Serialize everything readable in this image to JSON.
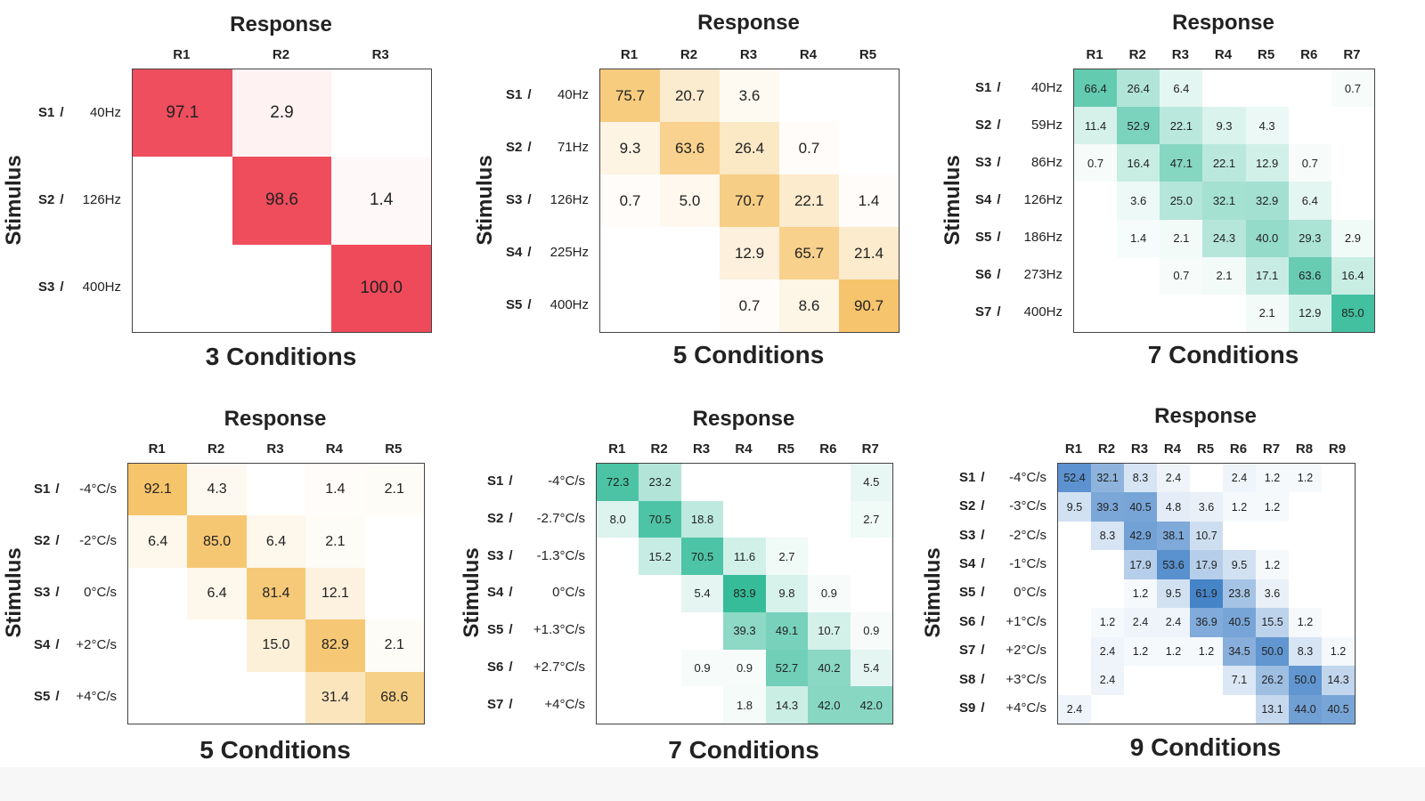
{
  "chart_data": [
    {
      "type": "heatmap",
      "title": "3 Conditions",
      "xlabel": "Response",
      "ylabel": "Stimulus",
      "color": "#ef4a5a",
      "vmax": 100,
      "columns": [
        "R1",
        "R2",
        "R3"
      ],
      "rows": [
        {
          "id": "S1",
          "value": "40Hz"
        },
        {
          "id": "S2",
          "value": "126Hz"
        },
        {
          "id": "S3",
          "value": "400Hz"
        }
      ],
      "values": [
        [
          97.1,
          2.9,
          null
        ],
        [
          null,
          98.6,
          1.4
        ],
        [
          null,
          null,
          100.0
        ]
      ]
    },
    {
      "type": "heatmap",
      "title": "5 Conditions",
      "xlabel": "Response",
      "ylabel": "Stimulus",
      "color": "#f5c061",
      "vmax": 100,
      "columns": [
        "R1",
        "R2",
        "R3",
        "R4",
        "R5"
      ],
      "rows": [
        {
          "id": "S1",
          "value": "40Hz"
        },
        {
          "id": "S2",
          "value": "71Hz"
        },
        {
          "id": "S3",
          "value": "126Hz"
        },
        {
          "id": "S4",
          "value": "225Hz"
        },
        {
          "id": "S5",
          "value": "400Hz"
        }
      ],
      "values": [
        [
          75.7,
          20.7,
          3.6,
          null,
          null
        ],
        [
          9.3,
          63.6,
          26.4,
          0.7,
          null
        ],
        [
          0.7,
          5.0,
          70.7,
          22.1,
          1.4
        ],
        [
          null,
          null,
          12.9,
          65.7,
          21.4
        ],
        [
          null,
          null,
          0.7,
          8.6,
          90.7
        ]
      ]
    },
    {
      "type": "heatmap",
      "title": "7 Conditions",
      "xlabel": "Response",
      "ylabel": "Stimulus",
      "color": "#2bb894",
      "vmax": 100,
      "columns": [
        "R1",
        "R2",
        "R3",
        "R4",
        "R5",
        "R6",
        "R7"
      ],
      "rows": [
        {
          "id": "S1",
          "value": "40Hz"
        },
        {
          "id": "S2",
          "value": "59Hz"
        },
        {
          "id": "S3",
          "value": "86Hz"
        },
        {
          "id": "S4",
          "value": "126Hz"
        },
        {
          "id": "S5",
          "value": "186Hz"
        },
        {
          "id": "S6",
          "value": "273Hz"
        },
        {
          "id": "S7",
          "value": "400Hz"
        }
      ],
      "values": [
        [
          66.4,
          26.4,
          6.4,
          null,
          null,
          null,
          0.7
        ],
        [
          11.4,
          52.9,
          22.1,
          9.3,
          4.3,
          null,
          null
        ],
        [
          0.7,
          16.4,
          47.1,
          22.1,
          12.9,
          0.7,
          null
        ],
        [
          null,
          3.6,
          25.0,
          32.1,
          32.9,
          6.4,
          null
        ],
        [
          null,
          1.4,
          2.1,
          24.3,
          40.0,
          29.3,
          2.9
        ],
        [
          null,
          null,
          0.7,
          2.1,
          17.1,
          63.6,
          16.4
        ],
        [
          null,
          null,
          null,
          null,
          2.1,
          12.9,
          85.0
        ]
      ]
    },
    {
      "type": "heatmap",
      "title": "5 Conditions",
      "xlabel": "Response",
      "ylabel": "Stimulus",
      "color": "#f5c061",
      "vmax": 100,
      "columns": [
        "R1",
        "R2",
        "R3",
        "R4",
        "R5"
      ],
      "rows": [
        {
          "id": "S1",
          "value": "-4°C/s"
        },
        {
          "id": "S2",
          "value": "-2°C/s"
        },
        {
          "id": "S3",
          "value": "0°C/s"
        },
        {
          "id": "S4",
          "value": "+2°C/s"
        },
        {
          "id": "S5",
          "value": "+4°C/s"
        }
      ],
      "values": [
        [
          92.1,
          4.3,
          null,
          1.4,
          2.1
        ],
        [
          6.4,
          85.0,
          6.4,
          2.1,
          null
        ],
        [
          null,
          6.4,
          81.4,
          12.1,
          null
        ],
        [
          null,
          null,
          15.0,
          82.9,
          2.1
        ],
        [
          null,
          null,
          null,
          31.4,
          68.6
        ]
      ]
    },
    {
      "type": "heatmap",
      "title": "7 Conditions",
      "xlabel": "Response",
      "ylabel": "Stimulus",
      "color": "#2bb894",
      "vmax": 90,
      "columns": [
        "R1",
        "R2",
        "R3",
        "R4",
        "R5",
        "R6",
        "R7"
      ],
      "rows": [
        {
          "id": "S1",
          "value": "-4°C/s"
        },
        {
          "id": "S2",
          "value": "-2.7°C/s"
        },
        {
          "id": "S3",
          "value": "-1.3°C/s"
        },
        {
          "id": "S4",
          "value": "0°C/s"
        },
        {
          "id": "S5",
          "value": "+1.3°C/s"
        },
        {
          "id": "S6",
          "value": "+2.7°C/s"
        },
        {
          "id": "S7",
          "value": "+4°C/s"
        }
      ],
      "values": [
        [
          72.3,
          23.2,
          null,
          null,
          null,
          null,
          4.5
        ],
        [
          8.0,
          70.5,
          18.8,
          null,
          null,
          null,
          2.7
        ],
        [
          null,
          15.2,
          70.5,
          11.6,
          2.7,
          null,
          null
        ],
        [
          null,
          null,
          5.4,
          83.9,
          9.8,
          0.9,
          null
        ],
        [
          null,
          null,
          null,
          39.3,
          49.1,
          10.7,
          0.9
        ],
        [
          null,
          null,
          0.9,
          0.9,
          52.7,
          40.2,
          5.4
        ],
        [
          null,
          null,
          null,
          1.8,
          14.3,
          42.0,
          42.0
        ]
      ]
    },
    {
      "type": "heatmap",
      "title": "9 Conditions",
      "xlabel": "Response",
      "ylabel": "Stimulus",
      "color": "#3f7fc6",
      "vmax": 65,
      "columns": [
        "R1",
        "R2",
        "R3",
        "R4",
        "R5",
        "R6",
        "R7",
        "R8",
        "R9"
      ],
      "rows": [
        {
          "id": "S1",
          "value": "-4°C/s"
        },
        {
          "id": "S2",
          "value": "-3°C/s"
        },
        {
          "id": "S3",
          "value": "-2°C/s"
        },
        {
          "id": "S4",
          "value": "-1°C/s"
        },
        {
          "id": "S5",
          "value": "0°C/s"
        },
        {
          "id": "S6",
          "value": "+1°C/s"
        },
        {
          "id": "S7",
          "value": "+2°C/s"
        },
        {
          "id": "S8",
          "value": "+3°C/s"
        },
        {
          "id": "S9",
          "value": "+4°C/s"
        }
      ],
      "values": [
        [
          52.4,
          32.1,
          8.3,
          2.4,
          null,
          2.4,
          1.2,
          1.2,
          null
        ],
        [
          9.5,
          39.3,
          40.5,
          4.8,
          3.6,
          1.2,
          1.2,
          null,
          null
        ],
        [
          null,
          8.3,
          42.9,
          38.1,
          10.7,
          null,
          null,
          null,
          null
        ],
        [
          null,
          null,
          17.9,
          53.6,
          17.9,
          9.5,
          1.2,
          null,
          null
        ],
        [
          null,
          null,
          1.2,
          9.5,
          61.9,
          23.8,
          3.6,
          null,
          null
        ],
        [
          null,
          1.2,
          2.4,
          2.4,
          36.9,
          40.5,
          15.5,
          1.2,
          null
        ],
        [
          null,
          2.4,
          1.2,
          1.2,
          1.2,
          34.5,
          50.0,
          8.3,
          1.2
        ],
        [
          null,
          2.4,
          null,
          null,
          null,
          7.1,
          26.2,
          50.0,
          14.3
        ],
        [
          2.4,
          null,
          null,
          null,
          null,
          null,
          13.1,
          44.0,
          40.5
        ]
      ]
    }
  ]
}
